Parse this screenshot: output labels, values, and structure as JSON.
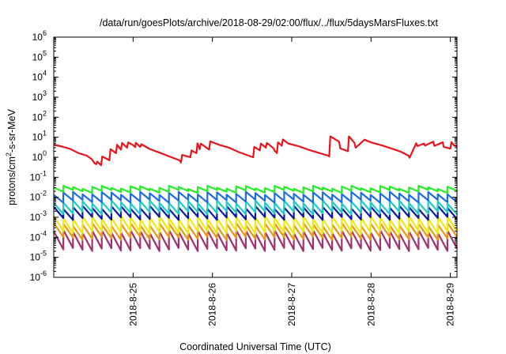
{
  "chart_data": {
    "type": "line",
    "title": "/data/run/goesPlots/archive/2018-08-29/02:00/flux/../flux/5daysMarsFluxes.txt",
    "xlabel": "Coordinated Universal Time (UTC)",
    "ylabel_parts": {
      "base": "protons/cm",
      "sup": "2",
      "rest": "-s-sr-MeV"
    },
    "y_scale": "log",
    "ylim": [
      1e-06,
      1000000.0
    ],
    "xlim": [
      "2018-08-24T00:00",
      "2018-08-29T02:00"
    ],
    "x_ticks": [
      {
        "label": "2018-8-25",
        "date": "2018-08-25T00:00"
      },
      {
        "label": "2018-8-26",
        "date": "2018-08-26T00:00"
      },
      {
        "label": "2018-8-27",
        "date": "2018-08-27T00:00"
      },
      {
        "label": "2018-8-28",
        "date": "2018-08-28T00:00"
      },
      {
        "label": "2018-8-29",
        "date": "2018-08-29T00:00"
      }
    ],
    "y_ticks": [
      {
        "base": "10",
        "exp": "-6",
        "value": 1e-06
      },
      {
        "base": "10",
        "exp": "-5",
        "value": 1e-05
      },
      {
        "base": "10",
        "exp": "-4",
        "value": 0.0001
      },
      {
        "base": "10",
        "exp": "-3",
        "value": 0.001
      },
      {
        "base": "10",
        "exp": "-2",
        "value": 0.01
      },
      {
        "base": "10",
        "exp": "-1",
        "value": 0.1
      },
      {
        "base": "10",
        "exp": "0",
        "value": 1
      },
      {
        "base": "10",
        "exp": "1",
        "value": 10
      },
      {
        "base": "10",
        "exp": "2",
        "value": 100
      },
      {
        "base": "10",
        "exp": "3",
        "value": 1000
      },
      {
        "base": "10",
        "exp": "4",
        "value": 10000
      },
      {
        "base": "10",
        "exp": "5",
        "value": 100000
      },
      {
        "base": "10",
        "exp": "6",
        "value": 1000000
      }
    ],
    "grid": false,
    "legend": "none",
    "series": [
      {
        "color": "#e8141b",
        "x": [
          "2018-08-24T00:00",
          "2018-08-24T02:30",
          "2018-08-24T05:00",
          "2018-08-24T07:30",
          "2018-08-24T10:00",
          "2018-08-24T11:30",
          "2018-08-24T12:20",
          "2018-08-24T12:50",
          "2018-08-24T13:10",
          "2018-08-24T14:20",
          "2018-08-24T14:40",
          "2018-08-24T16:50",
          "2018-08-24T17:10",
          "2018-08-24T18:50",
          "2018-08-24T19:10",
          "2018-08-24T20:20",
          "2018-08-24T20:40",
          "2018-08-24T22:10",
          "2018-08-24T22:30",
          "2018-08-25T00:00",
          "2018-08-25T00:40",
          "2018-08-25T00:50",
          "2018-08-25T02:10",
          "2018-08-25T02:30",
          "2018-08-25T05:00",
          "2018-08-25T08:00",
          "2018-08-25T11:00",
          "2018-08-25T14:00",
          "2018-08-25T14:30",
          "2018-08-25T14:50",
          "2018-08-25T17:20",
          "2018-08-25T17:40",
          "2018-08-25T19:10",
          "2018-08-25T19:30",
          "2018-08-25T20:10",
          "2018-08-25T20:30",
          "2018-08-25T23:00",
          "2018-08-25T23:20",
          "2018-08-26T02:00",
          "2018-08-26T05:00",
          "2018-08-26T08:00",
          "2018-08-26T11:00",
          "2018-08-26T12:20",
          "2018-08-26T12:40",
          "2018-08-26T14:20",
          "2018-08-26T14:40",
          "2018-08-26T16:10",
          "2018-08-26T16:30",
          "2018-08-26T18:30",
          "2018-08-26T18:50",
          "2018-08-26T19:30",
          "2018-08-26T19:50",
          "2018-08-26T21:00",
          "2018-08-26T21:20",
          "2018-08-26T23:00",
          "2018-08-27T02:00",
          "2018-08-27T05:00",
          "2018-08-27T08:00",
          "2018-08-27T11:00",
          "2018-08-27T11:20",
          "2018-08-27T11:40",
          "2018-08-27T14:20",
          "2018-08-27T14:40",
          "2018-08-27T17:00",
          "2018-08-27T17:20",
          "2018-08-27T19:00",
          "2018-08-27T19:20",
          "2018-08-27T22:00",
          "2018-08-28T00:00",
          "2018-08-28T03:00",
          "2018-08-28T06:00",
          "2018-08-28T09:00",
          "2018-08-28T11:20",
          "2018-08-28T11:40",
          "2018-08-28T13:40",
          "2018-08-28T14:00",
          "2018-08-28T16:00",
          "2018-08-28T16:20",
          "2018-08-28T18:50",
          "2018-08-28T19:10",
          "2018-08-28T21:40",
          "2018-08-28T22:00",
          "2018-08-29T00:00",
          "2018-08-29T00:20",
          "2018-08-29T01:10",
          "2018-08-29T02:00"
        ],
        "y": [
          4.3,
          3.4,
          2.6,
          1.6,
          1.2,
          0.8,
          0.5,
          0.45,
          0.6,
          0.4,
          1.1,
          0.7,
          2.5,
          1.6,
          4.2,
          2.4,
          5.2,
          3.0,
          5.5,
          4.0,
          3.2,
          5.3,
          3.3,
          4.5,
          2.6,
          1.7,
          1.1,
          0.7,
          0.55,
          1.3,
          1.0,
          2.2,
          1.6,
          5.0,
          2.5,
          4.8,
          2.4,
          6.2,
          4.2,
          3.0,
          1.8,
          1.2,
          1.0,
          3.3,
          2.2,
          4.8,
          3.0,
          5.2,
          2.8,
          2.1,
          1.6,
          5.5,
          3.8,
          7.7,
          4.8,
          3.6,
          2.4,
          1.7,
          1.2,
          1.1,
          11.0,
          6.0,
          2.8,
          2.0,
          11.0,
          5.2,
          3.0,
          7.5,
          5.5,
          4.0,
          2.8,
          1.9,
          1.2,
          0.95,
          5.0,
          3.6,
          4.8,
          3.8,
          6.0,
          3.7,
          5.5,
          3.3,
          2.7,
          5.7,
          3.8,
          3.5
        ]
      }
    ]
  },
  "band_series": [
    {
      "color": "#22ee22",
      "high": 0.032,
      "low": 0.02
    },
    {
      "color": "#1b6de0",
      "high": 0.016,
      "low": 0.0065
    },
    {
      "color": "#22c9c9",
      "high": 0.006,
      "low": 0.0017
    },
    {
      "color": "#0a1a9e",
      "high": 0.0032,
      "low": 0.0009
    },
    {
      "color": "#f0e814",
      "high": 0.001,
      "low": 0.00018
    },
    {
      "color": "#e8951a",
      "high": 0.00045,
      "low": 9e-05
    },
    {
      "color": "#a0306e",
      "high": 0.0002,
      "low": 2.5e-05
    }
  ],
  "band_cycles": 42
}
